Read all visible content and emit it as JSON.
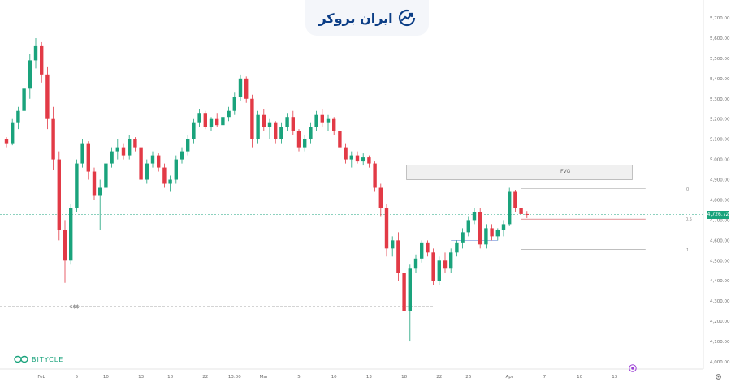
{
  "brand": {
    "logo_text": "ایران بروکر",
    "logo_icon": "trend-chart-icon",
    "watermark_text": "BITYCLE",
    "watermark_icon": "bitycle-logo-icon"
  },
  "annotations": {
    "fvg_label": "FVG",
    "liquidity_label": "$$$",
    "fib_levels": [
      "0",
      "0.5",
      "1"
    ]
  },
  "current_price": "4,726.72",
  "colors": {
    "up": "#1aa37c",
    "down": "#e23a46",
    "fvg_fill": "#f0f0f0",
    "fib_line": "#8aa4e0",
    "current_line": "#1aa37c"
  },
  "settings_icon": "gear-icon",
  "indicator_icon": "target-icon",
  "chart_data": {
    "type": "candlestick",
    "title": "",
    "xlabel": "",
    "ylabel": "",
    "ylim": [
      4000,
      5700
    ],
    "y_ticks": [
      "5,700.00",
      "5,600.00",
      "5,500.00",
      "5,400.00",
      "5,300.00",
      "5,200.00",
      "5,100.00",
      "5,000.00",
      "4,900.00",
      "4,800.00",
      "4,700.00",
      "4,600.00",
      "4,500.00",
      "4,400.00",
      "4,300.00",
      "4,200.00",
      "4,100.00",
      "4,000.00"
    ],
    "y_tick_values": [
      5700,
      5600,
      5500,
      5400,
      5300,
      5200,
      5100,
      5000,
      4900,
      4800,
      4700,
      4600,
      4500,
      4400,
      4300,
      4200,
      4100,
      4000
    ],
    "x_ticks": [
      "Feb",
      "5",
      "10",
      "13",
      "18",
      "22",
      "13:00",
      "Mar",
      "5",
      "10",
      "13",
      "18",
      "22",
      "26",
      "Apr",
      "7",
      "10",
      "13"
    ],
    "x_tick_index": [
      6,
      12,
      17,
      23,
      28,
      34,
      39,
      44,
      50,
      56,
      62,
      68,
      74,
      79,
      86,
      92,
      98,
      104
    ],
    "current_price": 4726.72,
    "fvg_zone": {
      "from_index": 68,
      "to_index": 107,
      "top": 4972,
      "bottom": 4900
    },
    "liquidity_level": {
      "price": 4272,
      "to_index": 73
    },
    "fib_range": {
      "from_index": 88,
      "to_index": 104,
      "level_0": 4856,
      "level_05": 4705,
      "level_1": 4556
    },
    "structure_lines": [
      {
        "from_index": 76,
        "to_index": 84,
        "price": 4600
      },
      {
        "from_index": 87,
        "to_index": 93,
        "price": 4800
      }
    ],
    "ohlc": [
      [
        5100,
        5110,
        5060,
        5080
      ],
      [
        5080,
        5200,
        5070,
        5180
      ],
      [
        5180,
        5260,
        5150,
        5240
      ],
      [
        5240,
        5380,
        5220,
        5350
      ],
      [
        5350,
        5520,
        5300,
        5490
      ],
      [
        5490,
        5600,
        5450,
        5560
      ],
      [
        5560,
        5580,
        5380,
        5420
      ],
      [
        5420,
        5460,
        5150,
        5200
      ],
      [
        5200,
        5260,
        4950,
        5000
      ],
      [
        5000,
        5040,
        4600,
        4650
      ],
      [
        4650,
        4700,
        4390,
        4500
      ],
      [
        4500,
        4780,
        4480,
        4760
      ],
      [
        4760,
        5000,
        4740,
        4980
      ],
      [
        4980,
        5100,
        4960,
        5080
      ],
      [
        5080,
        5090,
        4900,
        4940
      ],
      [
        4940,
        4960,
        4800,
        4820
      ],
      [
        4820,
        4900,
        4650,
        4860
      ],
      [
        4860,
        5000,
        4840,
        4980
      ],
      [
        4980,
        5060,
        4960,
        5040
      ],
      [
        5040,
        5100,
        5000,
        5060
      ],
      [
        5060,
        5080,
        5000,
        5020
      ],
      [
        5020,
        5120,
        5000,
        5100
      ],
      [
        5100,
        5110,
        5040,
        5060
      ],
      [
        5060,
        5100,
        4880,
        4900
      ],
      [
        4900,
        5000,
        4880,
        4980
      ],
      [
        4980,
        5040,
        4960,
        5020
      ],
      [
        5020,
        5030,
        4940,
        4960
      ],
      [
        4960,
        4980,
        4860,
        4880
      ],
      [
        4880,
        4920,
        4840,
        4900
      ],
      [
        4900,
        5020,
        4880,
        5000
      ],
      [
        5000,
        5060,
        4980,
        5040
      ],
      [
        5040,
        5120,
        5020,
        5100
      ],
      [
        5100,
        5200,
        5080,
        5180
      ],
      [
        5180,
        5250,
        5160,
        5230
      ],
      [
        5230,
        5240,
        5150,
        5160
      ],
      [
        5160,
        5210,
        5140,
        5200
      ],
      [
        5200,
        5230,
        5160,
        5170
      ],
      [
        5170,
        5220,
        5150,
        5210
      ],
      [
        5210,
        5260,
        5190,
        5240
      ],
      [
        5240,
        5330,
        5220,
        5310
      ],
      [
        5310,
        5420,
        5290,
        5400
      ],
      [
        5400,
        5410,
        5280,
        5300
      ],
      [
        5300,
        5320,
        5060,
        5100
      ],
      [
        5100,
        5240,
        5080,
        5220
      ],
      [
        5220,
        5250,
        5140,
        5160
      ],
      [
        5160,
        5200,
        5100,
        5180
      ],
      [
        5180,
        5190,
        5080,
        5100
      ],
      [
        5100,
        5180,
        5080,
        5160
      ],
      [
        5160,
        5230,
        5140,
        5210
      ],
      [
        5210,
        5240,
        5120,
        5140
      ],
      [
        5140,
        5150,
        5040,
        5060
      ],
      [
        5060,
        5120,
        5040,
        5100
      ],
      [
        5100,
        5180,
        5080,
        5160
      ],
      [
        5160,
        5240,
        5140,
        5220
      ],
      [
        5220,
        5250,
        5160,
        5180
      ],
      [
        5180,
        5220,
        5140,
        5200
      ],
      [
        5200,
        5210,
        5120,
        5140
      ],
      [
        5140,
        5150,
        5040,
        5060
      ],
      [
        5060,
        5080,
        4980,
        5000
      ],
      [
        5000,
        5040,
        4960,
        5020
      ],
      [
        5020,
        5040,
        4980,
        4990
      ],
      [
        4990,
        5030,
        4970,
        5010
      ],
      [
        5010,
        5020,
        4960,
        4980
      ],
      [
        4980,
        4990,
        4840,
        4860
      ],
      [
        4860,
        4880,
        4720,
        4760
      ],
      [
        4760,
        4780,
        4520,
        4560
      ],
      [
        4560,
        4620,
        4520,
        4600
      ],
      [
        4600,
        4640,
        4400,
        4440
      ],
      [
        4440,
        4460,
        4200,
        4250
      ],
      [
        4250,
        4480,
        4100,
        4460
      ],
      [
        4460,
        4530,
        4440,
        4510
      ],
      [
        4510,
        4600,
        4490,
        4590
      ],
      [
        4590,
        4600,
        4520,
        4540
      ],
      [
        4540,
        4560,
        4380,
        4400
      ],
      [
        4400,
        4520,
        4380,
        4500
      ],
      [
        4500,
        4540,
        4440,
        4460
      ],
      [
        4460,
        4560,
        4440,
        4540
      ],
      [
        4540,
        4600,
        4520,
        4590
      ],
      [
        4590,
        4660,
        4560,
        4640
      ],
      [
        4640,
        4720,
        4620,
        4700
      ],
      [
        4700,
        4760,
        4680,
        4740
      ],
      [
        4740,
        4760,
        4560,
        4580
      ],
      [
        4580,
        4680,
        4560,
        4660
      ],
      [
        4660,
        4680,
        4600,
        4620
      ],
      [
        4620,
        4660,
        4600,
        4650
      ],
      [
        4650,
        4700,
        4620,
        4680
      ],
      [
        4680,
        4860,
        4670,
        4840
      ],
      [
        4840,
        4850,
        4740,
        4760
      ],
      [
        4760,
        4780,
        4710,
        4730
      ],
      [
        4730,
        4745,
        4710,
        4727
      ]
    ]
  }
}
